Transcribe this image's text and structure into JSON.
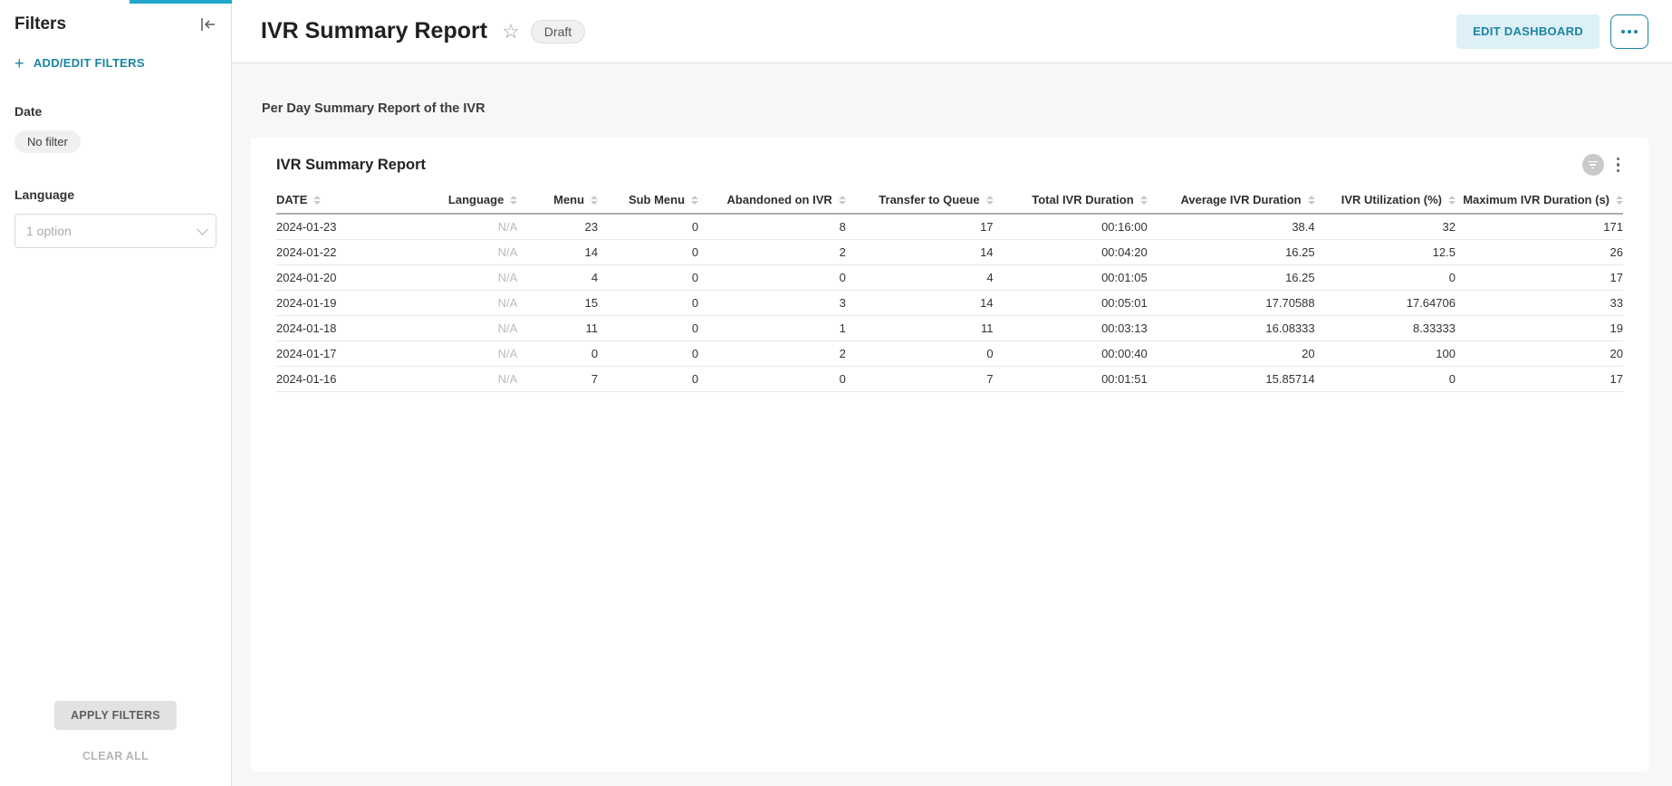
{
  "colors": {
    "accent": "#20A7C9",
    "accent_dark": "#1A85A0"
  },
  "sidebar": {
    "title": "Filters",
    "add_edit_label": "ADD/EDIT FILTERS",
    "filters": [
      {
        "label": "Date",
        "value": "No filter"
      },
      {
        "label": "Language",
        "value": "1 option"
      }
    ],
    "apply_label": "APPLY FILTERS",
    "clear_label": "CLEAR ALL"
  },
  "header": {
    "title": "IVR Summary Report",
    "status_badge": "Draft",
    "edit_button": "EDIT DASHBOARD"
  },
  "main": {
    "description": "Per Day Summary Report of the IVR",
    "card": {
      "title": "IVR Summary Report",
      "table": {
        "columns": [
          {
            "label": "DATE",
            "align": "left",
            "width": "9.5%"
          },
          {
            "label": "Language",
            "align": "right",
            "width": "8.5%"
          },
          {
            "label": "Menu",
            "align": "right",
            "width": "6%"
          },
          {
            "label": "Sub Menu",
            "align": "right",
            "width": "7.5%"
          },
          {
            "label": "Abandoned on IVR",
            "align": "right",
            "width": "11%"
          },
          {
            "label": "Transfer to Queue",
            "align": "right",
            "width": "11%"
          },
          {
            "label": "Total IVR Duration",
            "align": "right",
            "width": "11.5%"
          },
          {
            "label": "Average IVR Duration",
            "align": "right",
            "width": "12.5%"
          },
          {
            "label": "IVR Utilization (%)",
            "align": "right",
            "width": "10.5%"
          },
          {
            "label": "Maximum IVR Duration (s)",
            "align": "right",
            "width": "12.5%"
          }
        ],
        "rows": [
          [
            "2024-01-23",
            "N/A",
            "23",
            "0",
            "8",
            "17",
            "00:16:00",
            "38.4",
            "32",
            "171"
          ],
          [
            "2024-01-22",
            "N/A",
            "14",
            "0",
            "2",
            "14",
            "00:04:20",
            "16.25",
            "12.5",
            "26"
          ],
          [
            "2024-01-20",
            "N/A",
            "4",
            "0",
            "0",
            "4",
            "00:01:05",
            "16.25",
            "0",
            "17"
          ],
          [
            "2024-01-19",
            "N/A",
            "15",
            "0",
            "3",
            "14",
            "00:05:01",
            "17.70588",
            "17.64706",
            "33"
          ],
          [
            "2024-01-18",
            "N/A",
            "11",
            "0",
            "1",
            "11",
            "00:03:13",
            "16.08333",
            "8.33333",
            "19"
          ],
          [
            "2024-01-17",
            "N/A",
            "0",
            "0",
            "2",
            "0",
            "00:00:40",
            "20",
            "100",
            "20"
          ],
          [
            "2024-01-16",
            "N/A",
            "7",
            "0",
            "0",
            "7",
            "00:01:51",
            "15.85714",
            "0",
            "17"
          ]
        ]
      }
    }
  }
}
